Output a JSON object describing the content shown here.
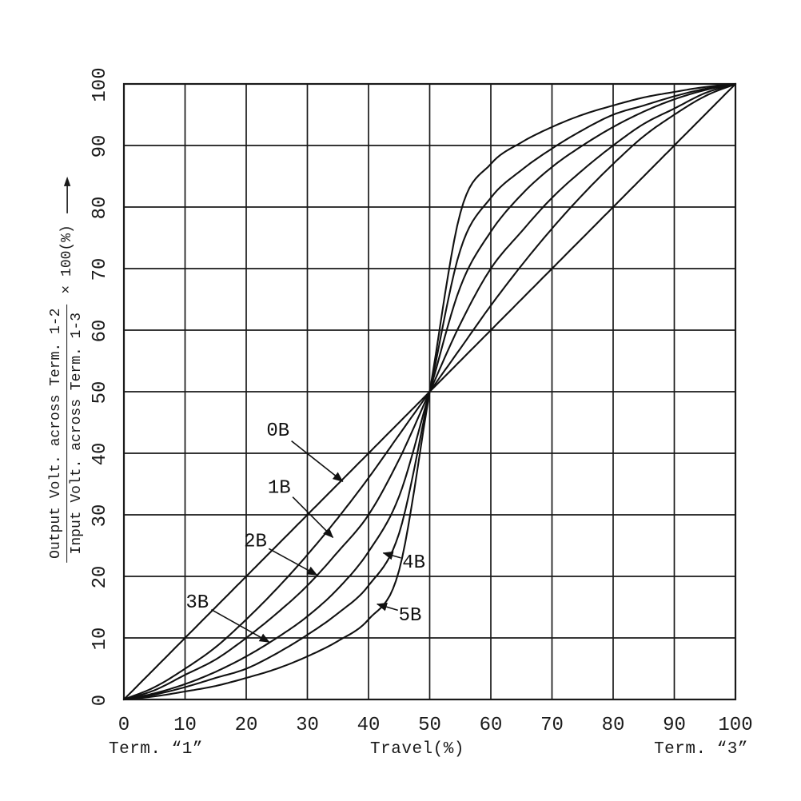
{
  "figure": {
    "xlabel": "Travel(%)",
    "caption_left": "Term. “1”",
    "caption_right": "Term. “3”",
    "ylabel": {
      "numerator": "Output Volt. across Term. 1-2",
      "denominator": "Input Volt. across Term. 1-3",
      "suffix": "× 100(%)"
    }
  },
  "colors": {
    "ink": "#1a1a1a",
    "background": "#ffffff"
  },
  "chart_data": {
    "type": "line",
    "title": "",
    "xlabel": "Travel(%)",
    "ylabel": "Output Volt. across Term. 1-2 / Input Volt. across Term. 1-3 × 100(%)",
    "xlim": [
      0,
      100
    ],
    "ylim": [
      0,
      100
    ],
    "xticks": [
      0,
      10,
      20,
      30,
      40,
      50,
      60,
      70,
      80,
      90,
      100
    ],
    "yticks": [
      0,
      10,
      20,
      30,
      40,
      50,
      60,
      70,
      80,
      90,
      100
    ],
    "grid": true,
    "legend": "inline-arrow-labels",
    "x": [
      0,
      5,
      10,
      15,
      20,
      25,
      30,
      35,
      40,
      45,
      50,
      55,
      60,
      65,
      70,
      75,
      80,
      85,
      90,
      95,
      100
    ],
    "series": [
      {
        "name": "0B",
        "values": [
          0,
          5,
          10,
          15,
          20,
          25,
          30,
          35,
          40,
          45,
          50,
          55,
          60,
          65,
          70,
          75,
          80,
          85,
          90,
          95,
          100
        ]
      },
      {
        "name": "1B",
        "values": [
          0,
          2,
          5,
          8.5,
          13,
          18,
          23.5,
          29.5,
          36,
          43,
          50,
          57,
          64,
          70.5,
          76.5,
          82,
          87,
          91.5,
          95,
          98,
          100
        ]
      },
      {
        "name": "2B",
        "values": [
          0,
          1.5,
          4,
          6.5,
          10,
          14,
          18.5,
          24,
          30,
          39,
          50,
          61,
          70,
          76,
          81.5,
          86,
          90,
          93.5,
          96,
          98.5,
          100
        ]
      },
      {
        "name": "3B",
        "values": [
          0,
          1,
          2.5,
          4.5,
          7,
          10,
          13.5,
          18,
          24,
          33,
          50,
          67,
          76,
          82,
          86.5,
          90,
          93,
          95.5,
          97.5,
          99,
          100
        ]
      },
      {
        "name": "4B",
        "values": [
          0,
          0.8,
          2,
          3.5,
          5,
          7.5,
          10.5,
          14,
          18.5,
          27,
          50,
          73,
          81.5,
          86,
          89.5,
          92.5,
          95,
          96.5,
          98,
          99.2,
          100
        ]
      },
      {
        "name": "5B",
        "values": [
          0,
          0.5,
          1.3,
          2.2,
          3.5,
          5,
          7,
          9.5,
          13,
          21,
          50,
          79,
          87,
          90.5,
          93,
          95,
          96.5,
          97.8,
          98.7,
          99.5,
          100
        ]
      }
    ],
    "annotations": [
      {
        "label": "0B",
        "tx": 25.2,
        "ty": 43.9,
        "sx": 27.4,
        "sy": 42.0,
        "ex": 35.8,
        "ey": 35.4
      },
      {
        "label": "1B",
        "tx": 25.4,
        "ty": 34.6,
        "sx": 27.6,
        "sy": 32.9,
        "ex": 34.2,
        "ey": 26.3
      },
      {
        "label": "2B",
        "tx": 21.5,
        "ty": 25.9,
        "sx": 23.7,
        "sy": 24.5,
        "ex": 31.6,
        "ey": 20.2
      },
      {
        "label": "3B",
        "tx": 12.0,
        "ty": 16.0,
        "sx": 14.3,
        "sy": 14.6,
        "ex": 23.8,
        "ey": 9.3
      },
      {
        "label": "4B",
        "tx": 47.4,
        "ty": 22.5,
        "sx": 45.3,
        "sy": 23.0,
        "ex": 42.4,
        "ey": 23.8
      },
      {
        "label": "5B",
        "tx": 46.8,
        "ty": 13.9,
        "sx": 44.8,
        "sy": 14.5,
        "ex": 41.4,
        "ey": 15.5
      }
    ]
  }
}
